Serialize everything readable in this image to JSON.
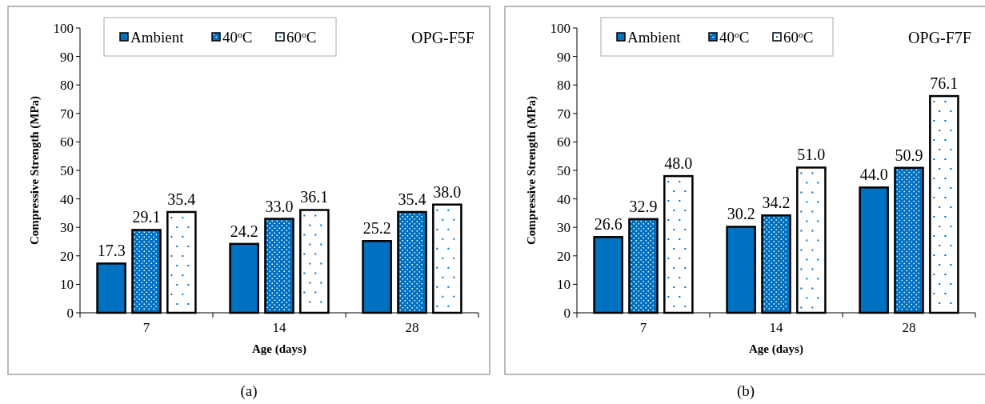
{
  "chart_data": [
    {
      "type": "bar",
      "title": "OPG-F5F",
      "xlabel": "Age (days)",
      "ylabel": "Compressive Strength (MPa)",
      "categories": [
        "7",
        "14",
        "28"
      ],
      "ylim": [
        0,
        100
      ],
      "yticks": [
        0,
        10,
        20,
        30,
        40,
        50,
        60,
        70,
        80,
        90,
        100
      ],
      "legend": "top left",
      "annotations": [
        "(a)"
      ],
      "series": [
        {
          "name": "Ambient",
          "color": "#0070c0",
          "values": [
            17.3,
            24.2,
            25.2
          ],
          "value_labels": [
            "17.3",
            "24.2",
            "25.2"
          ]
        },
        {
          "name": "40$^{o}$C",
          "color": "#0070c0",
          "values": [
            29.1,
            33.0,
            35.4
          ],
          "value_labels": [
            "29.1",
            "33.0",
            "35.4"
          ]
        },
        {
          "name": "60$^{o}$C",
          "color": "#ffffff",
          "values": [
            35.4,
            36.1,
            38.0
          ],
          "value_labels": [
            "35.4",
            "36.1",
            "38.0"
          ]
        }
      ]
    },
    {
      "type": "bar",
      "title": "OPG-F7F",
      "xlabel": "Age (days)",
      "ylabel": "Compressive Strength (MPa)",
      "categories": [
        "7",
        "14",
        "28"
      ],
      "ylim": [
        0,
        100
      ],
      "yticks": [
        0,
        10,
        20,
        30,
        40,
        50,
        60,
        70,
        80,
        90,
        100
      ],
      "legend": "top left",
      "annotations": [
        "(b)"
      ],
      "series": [
        {
          "name": "Ambient",
          "color": "#0070c0",
          "values": [
            26.6,
            30.2,
            44.0
          ],
          "value_labels": [
            "26.6",
            "30.2",
            "44.0"
          ]
        },
        {
          "name": "40$^{o}$C",
          "color": "#0070c0",
          "values": [
            32.9,
            34.2,
            50.9
          ],
          "value_labels": [
            "32.9",
            "34.2",
            "50.9"
          ]
        },
        {
          "name": "60$^{o}$C",
          "color": "#ffffff",
          "values": [
            48.0,
            51.0,
            76.1
          ],
          "value_labels": [
            "48.0",
            "51.0",
            "76.1"
          ]
        }
      ]
    }
  ]
}
